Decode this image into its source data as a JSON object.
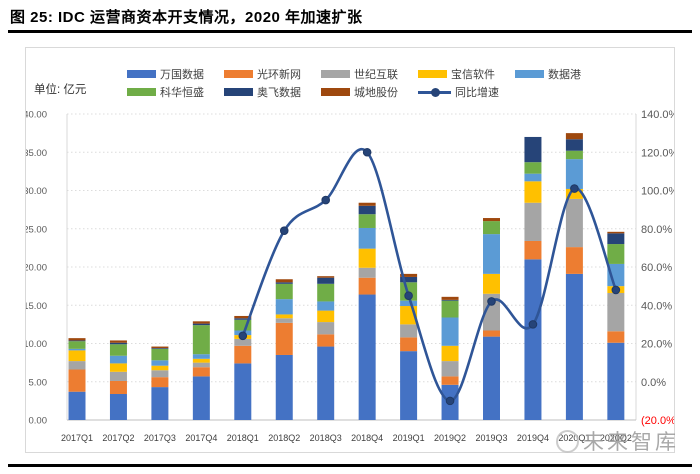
{
  "page": {
    "title": "图 25: IDC 运营商资本开支情况，2020 年加速扩张",
    "watermark": "未来智库"
  },
  "chart": {
    "unit_label": "单位: 亿元"
  },
  "chart_data": {
    "type": "bar",
    "subtype": "stacked-bars-with-growth-line",
    "title": "IDC 运营商资本开支情况",
    "unit": "亿元",
    "grid": true,
    "legend_position": "top",
    "categories": [
      "2017Q1",
      "2017Q2",
      "2017Q3",
      "2017Q4",
      "2018Q1",
      "2018Q2",
      "2018Q3",
      "2018Q4",
      "2019Q1",
      "2019Q2",
      "2019Q3",
      "2019Q4",
      "2020Q1",
      "2020Q2"
    ],
    "series": [
      {
        "name": "万国数据",
        "color": "#4472C4",
        "values": [
          3.7,
          3.4,
          4.3,
          5.7,
          7.4,
          8.5,
          9.6,
          16.4,
          9.0,
          4.6,
          10.9,
          21.0,
          19.1,
          10.1
        ]
      },
      {
        "name": "光环新网",
        "color": "#ED7D31",
        "values": [
          2.9,
          1.7,
          1.3,
          1.2,
          2.3,
          4.2,
          1.6,
          2.2,
          1.8,
          1.1,
          0.8,
          2.4,
          3.5,
          1.5
        ]
      },
      {
        "name": "世纪互联",
        "color": "#A5A5A5",
        "values": [
          1.1,
          1.2,
          0.9,
          0.6,
          0.9,
          0.6,
          1.6,
          1.3,
          1.7,
          2.0,
          4.8,
          5.0,
          6.3,
          5.0
        ]
      },
      {
        "name": "宝信软件",
        "color": "#FFC000",
        "values": [
          1.4,
          1.1,
          0.6,
          0.5,
          0.5,
          0.5,
          1.5,
          2.5,
          2.4,
          2.0,
          2.6,
          2.8,
          1.3,
          0.9
        ]
      },
      {
        "name": "数据港",
        "color": "#5B9BD5",
        "values": [
          0.2,
          1.0,
          0.7,
          0.6,
          0.6,
          2.0,
          1.2,
          2.7,
          0.7,
          3.7,
          5.2,
          1.0,
          3.9,
          2.9
        ]
      },
      {
        "name": "科华恒盛",
        "color": "#70AD47",
        "values": [
          1.0,
          1.5,
          1.5,
          3.8,
          1.4,
          2.0,
          2.3,
          1.8,
          2.4,
          2.2,
          1.7,
          1.5,
          1.1,
          2.6
        ]
      },
      {
        "name": "奥飞数据",
        "color": "#264478",
        "values": [
          0.1,
          0.2,
          0.1,
          0.2,
          0.2,
          0.2,
          0.8,
          1.1,
          0.7,
          0.1,
          0.0,
          3.3,
          1.5,
          1.4
        ]
      },
      {
        "name": "城地股份",
        "color": "#9E480E",
        "values": [
          0.3,
          0.3,
          0.2,
          0.3,
          0.3,
          0.4,
          0.2,
          0.4,
          0.4,
          0.4,
          0.4,
          0.0,
          0.8,
          0.2
        ]
      }
    ],
    "line_series": {
      "name": "同比增速",
      "axis": "right",
      "color": "#2F5597",
      "marker_color": "#264478",
      "values": [
        null,
        null,
        null,
        null,
        24,
        79,
        95,
        120,
        45,
        -10,
        42,
        30,
        101,
        48
      ]
    },
    "left_axis": {
      "min": 0,
      "max": 40,
      "step": 5,
      "tick_labels": [
        "0.00",
        "5.00",
        "10.00",
        "15.00",
        "20.00",
        "25.00",
        "30.00",
        "35.00",
        "40.00"
      ],
      "tick_color": "#595959"
    },
    "right_axis": {
      "min": -20,
      "max": 140,
      "step": 20,
      "tick_labels": [
        "(20.0%)",
        "0.0%",
        "20.0%",
        "40.0%",
        "60.0%",
        "80.0%",
        "100.0%",
        "120.0%",
        "140.0%"
      ],
      "tick_color": "#595959",
      "negative_tick_color": "#FF0000"
    }
  }
}
